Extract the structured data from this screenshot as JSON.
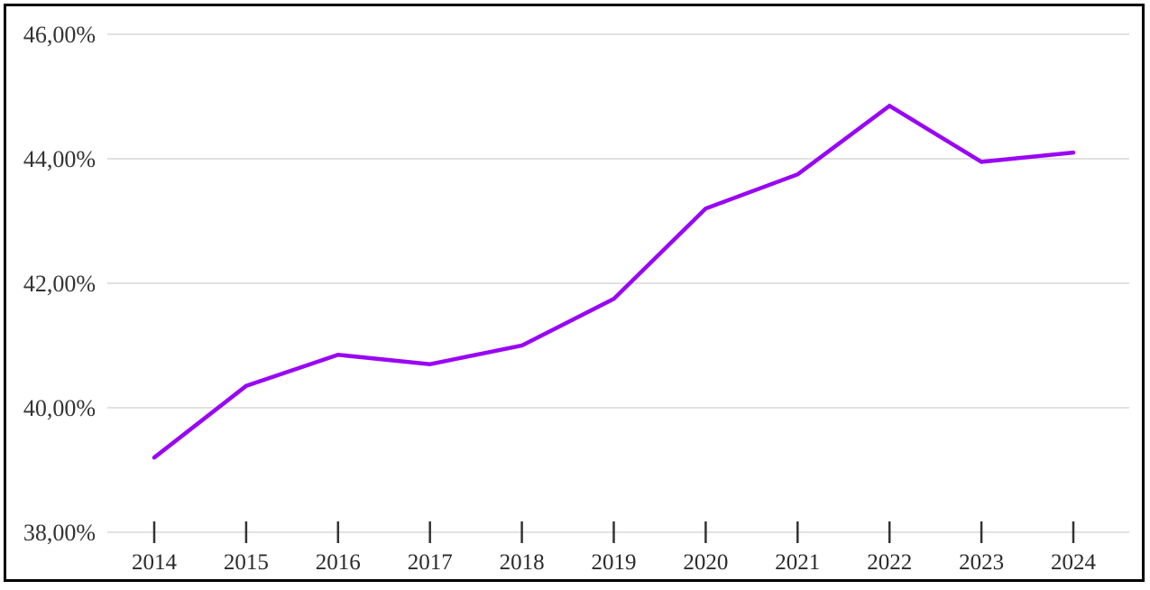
{
  "chart_data": {
    "type": "line",
    "title": "",
    "xlabel": "",
    "ylabel": "",
    "x": [
      2014,
      2015,
      2016,
      2017,
      2018,
      2019,
      2020,
      2021,
      2022,
      2023,
      2024
    ],
    "x_tick_labels": [
      "2014",
      "2015",
      "2016",
      "2017",
      "2018",
      "2019",
      "2020",
      "2021",
      "2022",
      "2023",
      "2024"
    ],
    "series": [
      {
        "name": "percentage-series",
        "color": "#9905f5",
        "values": [
          39.2,
          40.35,
          40.85,
          40.7,
          41.0,
          41.75,
          43.2,
          43.75,
          44.85,
          43.95,
          44.1
        ]
      }
    ],
    "ylim": [
      38,
      46
    ],
    "y_ticks": [
      46,
      44,
      42,
      40,
      38
    ],
    "y_tick_labels": [
      "46,00%",
      "44,00%",
      "42,00%",
      "40,00%",
      "38,00%"
    ],
    "grid": "horizontal",
    "legend_position": "none",
    "colors": {
      "gridline": "#d9d9d9",
      "axis_tick": "#333333",
      "y_label_text": "#333333",
      "x_label_text": "#2b2b2b",
      "frame_border": "#000000",
      "background": "#ffffff"
    }
  }
}
